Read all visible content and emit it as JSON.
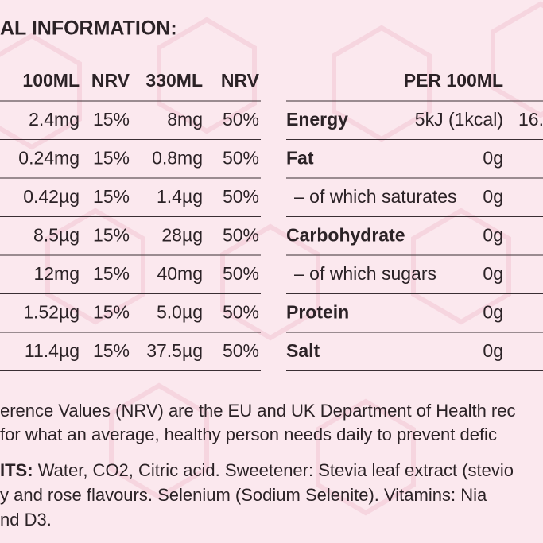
{
  "heading": "AL INFORMATION:",
  "vitamins_table": {
    "header": [
      "100ML",
      "NRV",
      "330ML",
      "NRV"
    ],
    "rows": [
      [
        "2.4mg",
        "15%",
        "8mg",
        "50%"
      ],
      [
        "0.24mg",
        "15%",
        "0.8mg",
        "50%"
      ],
      [
        "0.42µg",
        "15%",
        "1.4µg",
        "50%"
      ],
      [
        "8.5µg",
        "15%",
        "28µg",
        "50%"
      ],
      [
        "12mg",
        "15%",
        "40mg",
        "50%"
      ],
      [
        "1.52µg",
        "15%",
        "5.0µg",
        "50%"
      ],
      [
        "11.4µg",
        "15%",
        "37.5µg",
        "50%"
      ]
    ]
  },
  "nutrition_table": {
    "header": "PER 100ML",
    "rows": [
      [
        "Energy",
        "5kJ (1kcal)",
        "16."
      ],
      [
        "Fat",
        "0g"
      ],
      [
        "– of which saturates",
        "0g"
      ],
      [
        "Carbohydrate",
        "0g"
      ],
      [
        "– of which sugars",
        "0g"
      ],
      [
        "Protein",
        "0g"
      ],
      [
        "Salt",
        "0g"
      ]
    ]
  },
  "footnote": [
    "erence Values (NRV) are the EU and UK Department of Health rec",
    "for what an average, healthy person needs daily to prevent defic"
  ],
  "ingredients": {
    "label": "ITS:",
    "lines": [
      "Water, CO2, Citric acid. Sweetener: Stevia leaf extract (stevio",
      "y and rose flavours. Selenium (Sodium Selenite). Vitamins: Nia",
      "nd D3."
    ]
  }
}
